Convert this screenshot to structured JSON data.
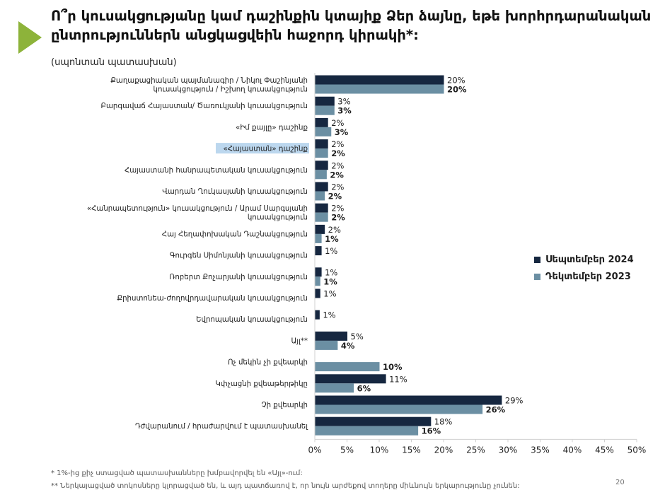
{
  "header": {
    "title": "Ո՞ր կուսակցությանը կամ դաշինքին կտայիք Ձեր ձայնը, եթե խորհրդարանական ընտրություններն անցկացվեին հաջորդ կիրակի*:",
    "subtitle": "(սպոնտան պատասխան)"
  },
  "footnotes": {
    "note1": "* 1%-ից քիչ ստացված պատասխանները խմբավորվել են «Այլ»-ում:",
    "note2": "** Ներկայացված տոկոսները կլորացված են, և այդ պատճառով է, որ նույն արժեքով տողերը միևնույն երկարությունը չունեն:"
  },
  "page_number": "20",
  "colors": {
    "series1": "#162740",
    "series2": "#6b8fa3",
    "accent": "#8db33a",
    "axis": "#d0d0d0"
  },
  "chart_data": {
    "type": "bar",
    "orientation": "horizontal",
    "categories": [
      [
        "Քաղաքացիական պայմանագիր / Նիկոլ Փաշինյանի",
        "կուսակցություն / Իշխող կուսակցություն"
      ],
      [
        "Բարգավաճ Հայաստան/ Ծառուկյանի կուսակցություն"
      ],
      [
        "«Իմ քայլը» դաշինք"
      ],
      [
        "«Հայաստան» դաշինք"
      ],
      [
        "Հայաստանի հանրապետական կուսակցություն"
      ],
      [
        "Վարդան Ղուկասյանի կուսակցություն"
      ],
      [
        "«Հանրապետություն» կուսակցություն / Արամ Սարգսյանի",
        "կուսակցություն"
      ],
      [
        "Հայ Հեղափոխական Դաշնակցություն"
      ],
      [
        "Գուրգեն Սիմոնյանի կուսակցություն"
      ],
      [
        "Ռոբերտ Քոչարյանի կուսակցություն"
      ],
      [
        "Քրիստոնեա-ժողովրդավարական կուսակցություն"
      ],
      [
        "Եվրոպական կուսակցություն"
      ],
      [
        "Այլ**"
      ],
      [
        "Ոչ մեկին չի քվեարկի"
      ],
      [
        "Կփչացնի քվեաթերթիկը"
      ],
      [
        "Չի քվեարկի"
      ],
      [
        "Դժվարանում / հրաժարվում է պատասխանել"
      ]
    ],
    "series": [
      {
        "name": "Սեպտեմբեր 2024",
        "values": [
          20,
          3,
          2,
          2,
          2,
          2,
          2,
          1.5,
          1,
          1,
          0.8,
          0.7,
          5,
          null,
          11,
          29,
          18
        ],
        "labels": [
          "20%",
          "3%",
          "2%",
          "2%",
          "2%",
          "2%",
          "2%",
          "2%",
          "1%",
          "1%",
          "1%",
          "1%",
          "5%",
          "",
          "11%",
          "29%",
          "18%"
        ]
      },
      {
        "name": "Դեկտեմբեր 2023",
        "values": [
          20,
          3,
          2.5,
          2,
          1.8,
          1.5,
          2,
          1,
          null,
          0.8,
          null,
          null,
          3.5,
          10,
          6,
          26,
          16
        ],
        "labels": [
          "20%",
          "3%",
          "3%",
          "2%",
          "2%",
          "2%",
          "2%",
          "1%",
          "",
          "1%",
          "",
          "",
          "4%",
          "10%",
          "6%",
          "26%",
          "16%"
        ]
      }
    ],
    "xlim": [
      0,
      50
    ],
    "xticks": [
      "0%",
      "5%",
      "10%",
      "15%",
      "20%",
      "25%",
      "30%",
      "35%",
      "40%",
      "45%",
      "50%"
    ],
    "highlighted_category": 3,
    "legend_position": "right",
    "grid": false
  }
}
